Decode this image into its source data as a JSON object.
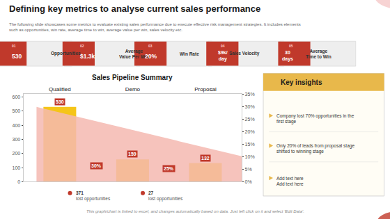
{
  "title": "Defining key metrics to analyse current sales performance",
  "subtitle": "The following slide showcases some metrics to evaluate existing sales performance due to execute effective risk management strategies. It includes elements\nsuch as opportunities, win rate, average time to win, average value per win, sales velocity etc.",
  "metrics": [
    {
      "num": "01",
      "value": "530",
      "label": "Opportunities"
    },
    {
      "num": "02",
      "value": "$1.3k",
      "label": "Average\nValue Per Win"
    },
    {
      "num": "03",
      "value": "20%",
      "label": "Win Rate"
    },
    {
      "num": "04",
      "value": "$9k/\nday",
      "label": "Sales Velocity"
    },
    {
      "num": "05",
      "value": "30\ndays",
      "label": "Average\nTime to Win"
    }
  ],
  "chart_data": {
    "type": "bar",
    "title": "Sales Pipeline Summary",
    "categories": [
      "Qualified",
      "Demo",
      "Proposal"
    ],
    "values": [
      530,
      159,
      132
    ],
    "color": "#f5c518",
    "data_labels": true,
    "grid": false,
    "ylim": [
      0,
      620
    ],
    "yticks": [
      0,
      100,
      200,
      300,
      400,
      500,
      600
    ],
    "y2lim": [
      0,
      35
    ],
    "y2ticks": [
      {
        "value": 0,
        "label": "0%"
      },
      {
        "value": 5,
        "label": "5%"
      },
      {
        "value": 10,
        "label": "10%"
      },
      {
        "value": 15,
        "label": "15%"
      },
      {
        "value": 20,
        "label": "20%"
      },
      {
        "value": 25,
        "label": "25%"
      },
      {
        "value": 30,
        "label": "30%"
      },
      {
        "value": 35,
        "label": "35%"
      }
    ],
    "area": {
      "values": [
        530,
        180
      ],
      "color": "#f4b8b0"
    },
    "conversion_labels": [
      "30%",
      "25%"
    ],
    "lost": [
      {
        "count": "371",
        "label": "lost opportunities"
      },
      {
        "count": "27",
        "label": "lost opportunities"
      }
    ]
  },
  "insights_title": "Key insights",
  "insights": [
    "Company lost 70% opportunities in the\nfirst stage",
    "Only 20% of leads from proposal stage\nshifted to winning stage",
    "Add text here\nAdd text here"
  ],
  "footer": "This graph/chart is linked to excel, and changes automatically based on data. Just left click on it and select 'Edit Data'."
}
